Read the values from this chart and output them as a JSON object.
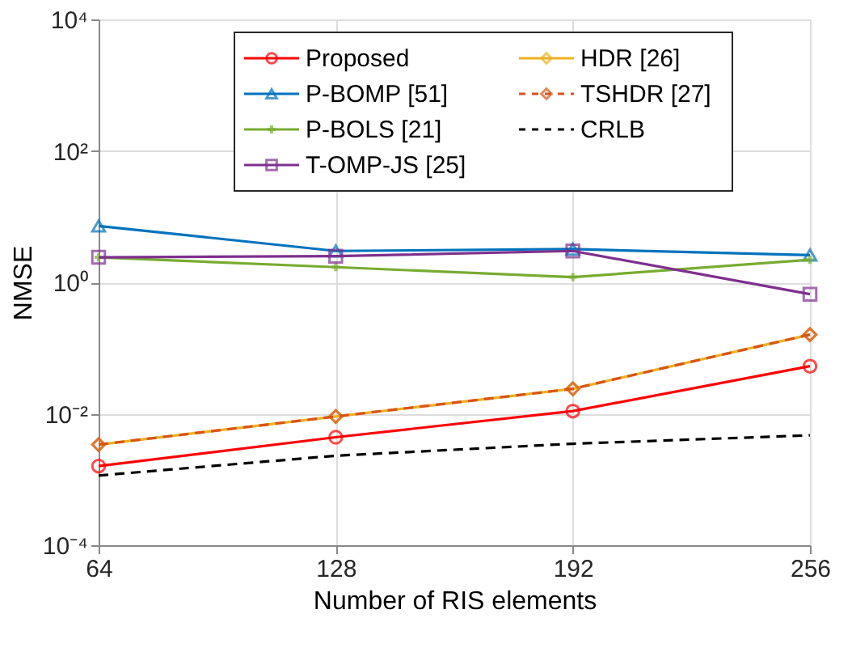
{
  "chart_data": {
    "type": "line",
    "xlabel": "Number of RIS elements",
    "ylabel": "NMSE",
    "x": [
      64,
      128,
      192,
      256
    ],
    "xlim": [
      64,
      256
    ],
    "xticks": [
      64,
      128,
      192,
      256
    ],
    "log": "y",
    "ylim": [
      0.0001,
      10000
    ],
    "yticks": [
      {
        "value": 0.0001,
        "label": "10⁻⁴"
      },
      {
        "value": 0.01,
        "label": "10⁻²"
      },
      {
        "value": 1,
        "label": "10⁰"
      },
      {
        "value": 100,
        "label": "10²"
      },
      {
        "value": 10000,
        "label": "10⁴"
      }
    ],
    "grid": true,
    "legend": "top right",
    "series": [
      {
        "name": "Proposed",
        "color": "#ff0000",
        "marker": "circle",
        "line_style": "solid",
        "values": [
          0.0016,
          0.0044,
          0.011,
          0.053
        ]
      },
      {
        "name": "P-BOMP [51]",
        "color": "#0072bd",
        "marker": "triangle",
        "line_style": "solid",
        "values": [
          7.2,
          3.0,
          3.2,
          2.6
        ]
      },
      {
        "name": "P-BOLS [21]",
        "color": "#77ac30",
        "marker": "cross",
        "line_style": "solid",
        "values": [
          2.4,
          1.7,
          1.2,
          2.2
        ]
      },
      {
        "name": "T-OMP-JS [25]",
        "color": "#7e2f8e",
        "marker": "square",
        "line_style": "solid",
        "values": [
          2.4,
          2.5,
          3.0,
          0.66
        ]
      },
      {
        "name": "HDR [26]",
        "color": "#edb120",
        "marker": "diamond",
        "line_style": "solid",
        "values": [
          0.0034,
          0.0091,
          0.024,
          0.16
        ]
      },
      {
        "name": "TSHDR [27]",
        "color": "#d95319",
        "marker": "diamond",
        "line_style": "dashed",
        "values": [
          0.0034,
          0.0091,
          0.024,
          0.16
        ]
      },
      {
        "name": "CRLB",
        "color": "#000000",
        "marker": "none",
        "line_style": "dashed",
        "values": [
          0.00115,
          0.0023,
          0.0035,
          0.0047
        ]
      }
    ]
  }
}
